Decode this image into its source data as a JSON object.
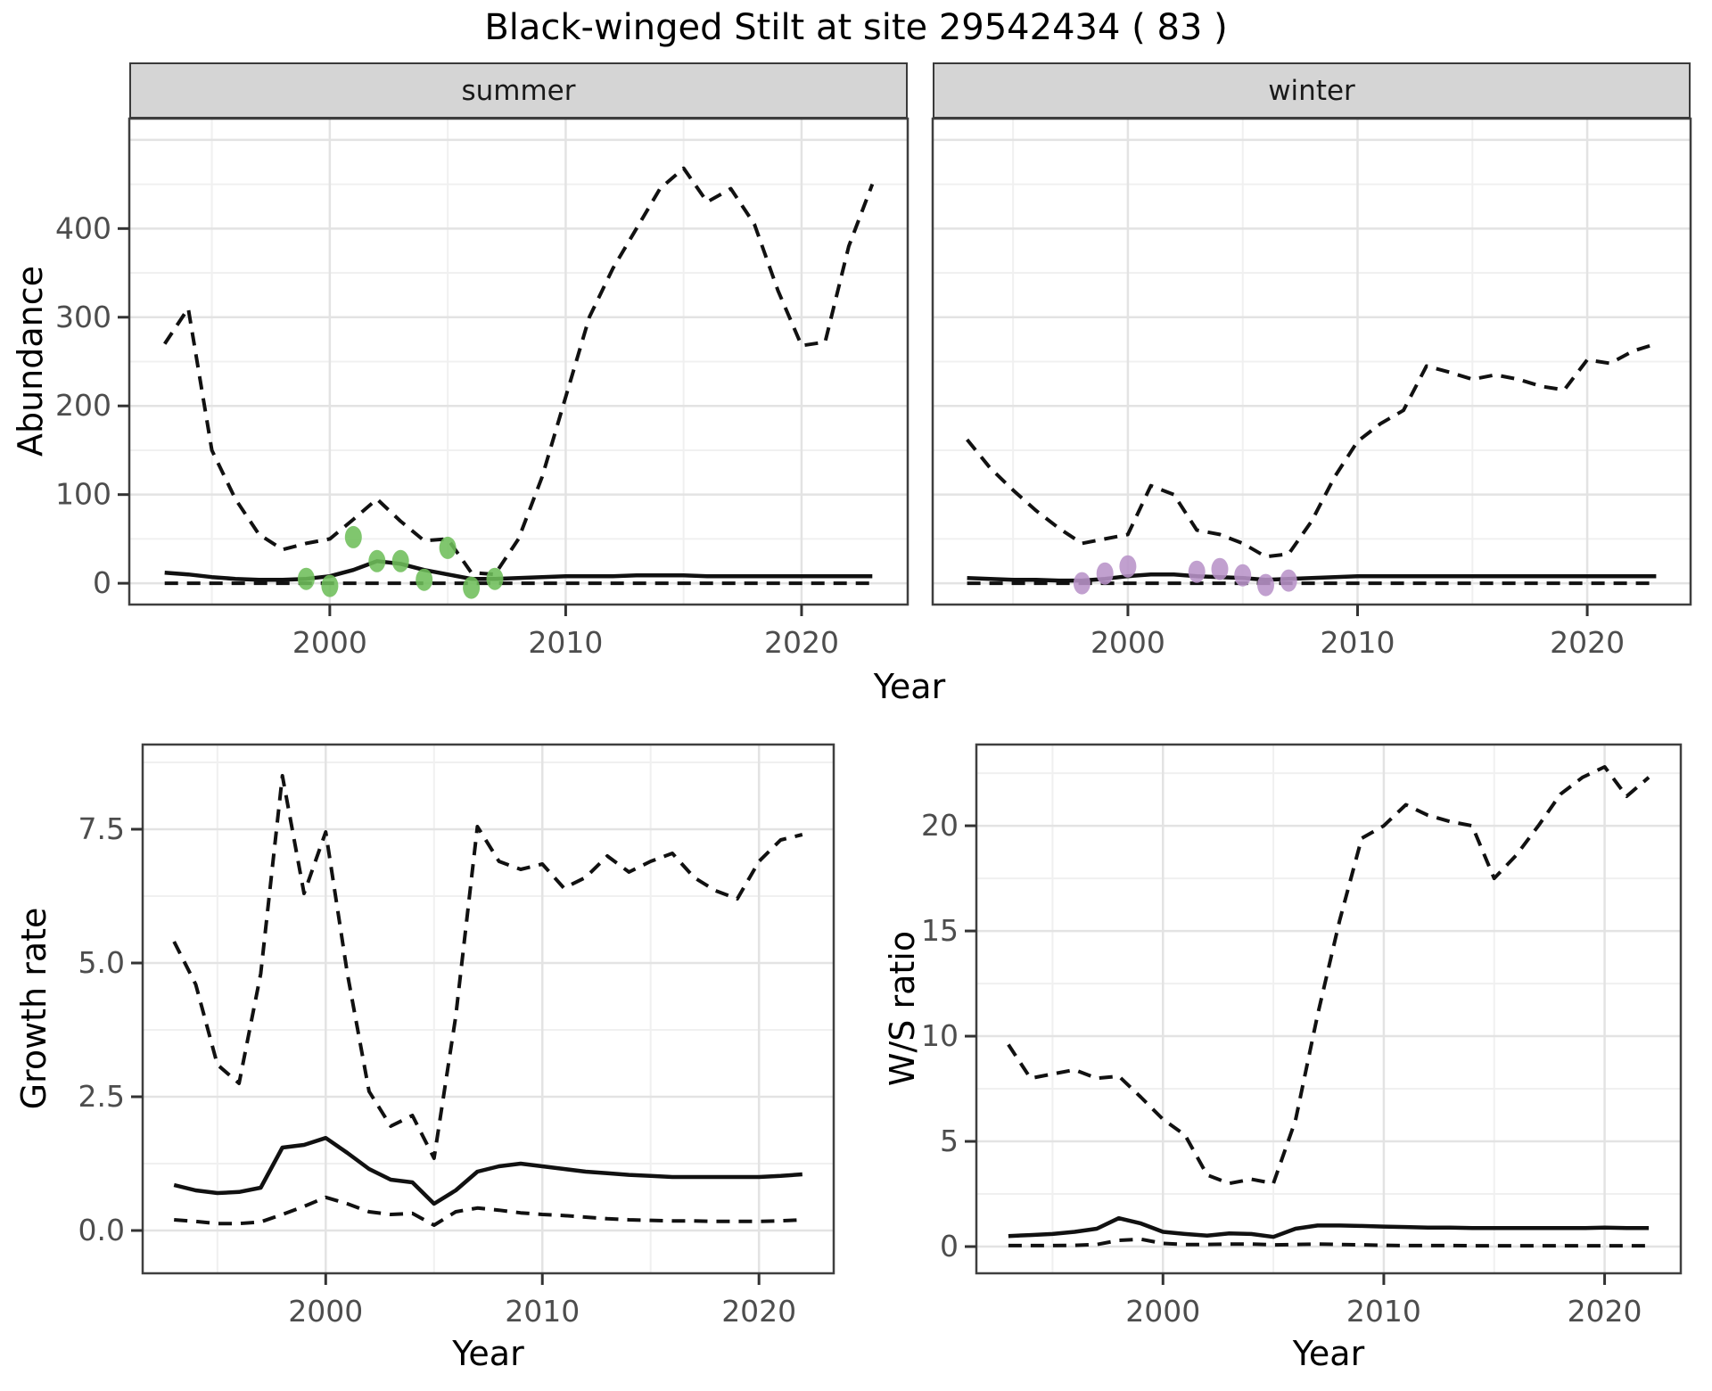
{
  "title": "Black-winged Stilt at site 29542434 ( 83 )",
  "axis_titles": {
    "abundance_y": "Abundance",
    "top_x": "Year",
    "growth_y": "Growth rate",
    "growth_x": "Year",
    "ws_y": "W/S ratio",
    "ws_x": "Year"
  },
  "colors": {
    "line": "#111111",
    "summer_points": "#6ebe5a",
    "winter_points": "#b893c8",
    "grid_major": "#e3e3e3",
    "grid_minor": "#f0f0f0",
    "panel_border": "#3f3f3f",
    "tick": "#333333",
    "tick_label": "#4d4d4d",
    "strip_bg": "#d5d5d5"
  },
  "chart_data": [
    {
      "key": "summer",
      "type": "line",
      "facet_label": "summer",
      "xlabel": "Year",
      "ylabel": "Abundance",
      "x": [
        1993,
        1994,
        1995,
        1996,
        1997,
        1998,
        1999,
        2000,
        2001,
        2002,
        2003,
        2004,
        2005,
        2006,
        2007,
        2008,
        2009,
        2010,
        2011,
        2012,
        2013,
        2014,
        2015,
        2016,
        2017,
        2018,
        2019,
        2020,
        2021,
        2022,
        2023
      ],
      "series": [
        {
          "name": "upper_dashed_q97_5",
          "style": "dashed",
          "values": [
            270,
            310,
            150,
            95,
            55,
            38,
            45,
            50,
            72,
            95,
            70,
            48,
            50,
            12,
            10,
            50,
            120,
            210,
            300,
            355,
            400,
            445,
            468,
            430,
            445,
            405,
            330,
            268,
            272,
            380,
            450
          ]
        },
        {
          "name": "median_solid",
          "style": "solid",
          "values": [
            12,
            10,
            7,
            5,
            4,
            4,
            5,
            8,
            15,
            25,
            22,
            15,
            10,
            5,
            5,
            6,
            7,
            8,
            8,
            8,
            9,
            9,
            9,
            8,
            8,
            8,
            8,
            8,
            8,
            8,
            8
          ]
        },
        {
          "name": "lower_dashed_q2_5",
          "style": "dashed",
          "values": [
            0,
            0,
            0,
            0,
            0,
            0,
            0,
            0,
            0,
            0,
            0,
            0,
            0,
            0,
            0,
            0,
            0,
            0,
            0,
            0,
            0,
            0,
            0,
            0,
            0,
            0,
            0,
            0,
            0,
            0,
            0
          ]
        }
      ],
      "points": {
        "name": "observed_counts",
        "color": "#6ebe5a",
        "x": [
          1999,
          2000,
          2001,
          2002,
          2003,
          2004,
          2005,
          2006,
          2007
        ],
        "y": [
          5,
          -3,
          52,
          25,
          25,
          4,
          40,
          -5,
          5
        ]
      },
      "xlim": [
        1991.5,
        2024.5
      ],
      "ylim": [
        -24,
        524
      ],
      "xticks": [
        2000,
        2010,
        2020
      ],
      "xtick_labels": [
        "2000",
        "2010",
        "2020"
      ],
      "minor_x": [
        1995,
        2005,
        2015
      ],
      "y_grid_major": [
        0,
        100,
        200,
        300,
        400,
        500
      ],
      "yticks_labeled": [
        0,
        100,
        200,
        300,
        400
      ],
      "ytick_labels": [
        "0",
        "100",
        "200",
        "300",
        "400"
      ],
      "minor_y": [
        50,
        150,
        250,
        350,
        450
      ],
      "show_y_axis": true
    },
    {
      "key": "winter",
      "type": "line",
      "facet_label": "winter",
      "xlabel": "Year",
      "ylabel": "Abundance",
      "x": [
        1993,
        1994,
        1995,
        1996,
        1997,
        1998,
        1999,
        2000,
        2001,
        2002,
        2003,
        2004,
        2005,
        2006,
        2007,
        2008,
        2009,
        2010,
        2011,
        2012,
        2013,
        2014,
        2015,
        2016,
        2017,
        2018,
        2019,
        2020,
        2021,
        2022,
        2023
      ],
      "series": [
        {
          "name": "upper_dashed_q97_5",
          "style": "dashed",
          "values": [
            162,
            130,
            105,
            82,
            62,
            45,
            50,
            55,
            110,
            100,
            60,
            55,
            45,
            30,
            33,
            70,
            120,
            160,
            180,
            195,
            245,
            238,
            230,
            235,
            230,
            222,
            218,
            252,
            248,
            262,
            270
          ]
        },
        {
          "name": "median_solid",
          "style": "solid",
          "values": [
            6,
            5,
            4,
            4,
            3,
            3,
            5,
            8,
            10,
            10,
            8,
            7,
            6,
            4,
            5,
            6,
            7,
            8,
            8,
            8,
            8,
            8,
            8,
            8,
            8,
            8,
            8,
            8,
            8,
            8,
            8
          ]
        },
        {
          "name": "lower_dashed_q2_5",
          "style": "dashed",
          "values": [
            0,
            0,
            0,
            0,
            0,
            0,
            0,
            0,
            0,
            0,
            0,
            0,
            0,
            0,
            0,
            0,
            0,
            0,
            0,
            0,
            0,
            0,
            0,
            0,
            0,
            0,
            0,
            0,
            0,
            0,
            0
          ]
        }
      ],
      "points": {
        "name": "observed_counts",
        "color": "#b893c8",
        "x": [
          1998,
          1999,
          2000,
          2003,
          2004,
          2005,
          2006,
          2007
        ],
        "y": [
          0,
          11,
          19,
          13,
          16,
          9,
          -2,
          3
        ]
      },
      "xlim": [
        1991.5,
        2024.5
      ],
      "ylim": [
        -24,
        524
      ],
      "xticks": [
        2000,
        2010,
        2020
      ],
      "xtick_labels": [
        "2000",
        "2010",
        "2020"
      ],
      "minor_x": [
        1995,
        2005,
        2015
      ],
      "y_grid_major": [
        0,
        100,
        200,
        300,
        400,
        500
      ],
      "yticks_labeled": [],
      "ytick_labels": [],
      "minor_y": [
        50,
        150,
        250,
        350,
        450
      ],
      "show_y_axis": false
    },
    {
      "key": "growth",
      "type": "line",
      "facet_label": "",
      "xlabel": "Year",
      "ylabel": "Growth rate",
      "x": [
        1993,
        1994,
        1995,
        1996,
        1997,
        1998,
        1999,
        2000,
        2001,
        2002,
        2003,
        2004,
        2005,
        2006,
        2007,
        2008,
        2009,
        2010,
        2011,
        2012,
        2013,
        2014,
        2015,
        2016,
        2017,
        2018,
        2019,
        2020,
        2021,
        2022
      ],
      "series": [
        {
          "name": "upper_dashed_q97_5",
          "style": "dashed",
          "values": [
            5.4,
            4.6,
            3.1,
            2.75,
            4.8,
            8.5,
            6.3,
            7.45,
            4.8,
            2.6,
            1.95,
            2.15,
            1.35,
            4.0,
            7.55,
            6.9,
            6.75,
            6.85,
            6.4,
            6.6,
            7.0,
            6.7,
            6.9,
            7.05,
            6.6,
            6.35,
            6.2,
            6.9,
            7.3,
            7.4
          ]
        },
        {
          "name": "median_solid",
          "style": "solid",
          "values": [
            0.85,
            0.75,
            0.7,
            0.72,
            0.8,
            1.55,
            1.6,
            1.73,
            1.45,
            1.15,
            0.95,
            0.9,
            0.5,
            0.75,
            1.1,
            1.2,
            1.25,
            1.2,
            1.15,
            1.1,
            1.07,
            1.04,
            1.02,
            1.0,
            1.0,
            1.0,
            1.0,
            1.0,
            1.02,
            1.05
          ]
        },
        {
          "name": "lower_dashed_q2_5",
          "style": "dashed",
          "values": [
            0.2,
            0.17,
            0.13,
            0.13,
            0.16,
            0.3,
            0.45,
            0.62,
            0.5,
            0.35,
            0.3,
            0.32,
            0.1,
            0.35,
            0.42,
            0.38,
            0.33,
            0.3,
            0.28,
            0.25,
            0.22,
            0.2,
            0.19,
            0.18,
            0.18,
            0.17,
            0.17,
            0.17,
            0.18,
            0.2
          ]
        }
      ],
      "points": null,
      "xlim": [
        1991.55,
        2023.45
      ],
      "ylim": [
        -0.8,
        9.083
      ],
      "xticks": [
        2000,
        2010,
        2020
      ],
      "xtick_labels": [
        "2000",
        "2010",
        "2020"
      ],
      "minor_x": [
        1995,
        2005,
        2015
      ],
      "y_grid_major": [
        0,
        2.5,
        5,
        7.5
      ],
      "yticks_labeled": [
        0,
        2.5,
        5,
        7.5
      ],
      "ytick_labels": [
        "0.0",
        "2.5",
        "5.0",
        "7.5"
      ],
      "minor_y": [
        1.25,
        3.75,
        6.25,
        8.75
      ],
      "show_y_axis": true
    },
    {
      "key": "ws",
      "type": "line",
      "facet_label": "",
      "xlabel": "Year",
      "ylabel": "W/S ratio",
      "x": [
        1993,
        1994,
        1995,
        1996,
        1997,
        1998,
        1999,
        2000,
        2001,
        2002,
        2003,
        2004,
        2005,
        2006,
        2007,
        2008,
        2009,
        2010,
        2011,
        2012,
        2013,
        2014,
        2015,
        2016,
        2017,
        2018,
        2019,
        2020,
        2021,
        2022
      ],
      "series": [
        {
          "name": "upper_dashed_q97_5",
          "style": "dashed",
          "values": [
            9.6,
            8.0,
            8.2,
            8.4,
            8.0,
            8.1,
            7.1,
            6.05,
            5.3,
            3.4,
            3.0,
            3.2,
            3.0,
            6.0,
            11.0,
            15.5,
            19.4,
            20.0,
            21.0,
            20.5,
            20.2,
            20.0,
            17.5,
            18.6,
            20.0,
            21.5,
            22.3,
            22.8,
            21.4,
            22.3
          ]
        },
        {
          "name": "median_solid",
          "style": "solid",
          "values": [
            0.5,
            0.55,
            0.6,
            0.7,
            0.85,
            1.35,
            1.1,
            0.7,
            0.6,
            0.52,
            0.63,
            0.6,
            0.46,
            0.85,
            1.0,
            1.0,
            0.98,
            0.95,
            0.93,
            0.9,
            0.9,
            0.88,
            0.88,
            0.88,
            0.88,
            0.88,
            0.88,
            0.9,
            0.88,
            0.88
          ]
        },
        {
          "name": "lower_dashed_q2_5",
          "style": "dashed",
          "values": [
            0.05,
            0.05,
            0.05,
            0.06,
            0.1,
            0.3,
            0.35,
            0.15,
            0.1,
            0.1,
            0.12,
            0.12,
            0.08,
            0.1,
            0.12,
            0.1,
            0.08,
            0.06,
            0.05,
            0.05,
            0.05,
            0.04,
            0.04,
            0.04,
            0.04,
            0.04,
            0.04,
            0.04,
            0.04,
            0.04
          ]
        }
      ],
      "points": null,
      "xlim": [
        1991.55,
        2023.45
      ],
      "ylim": [
        -1.27,
        23.86
      ],
      "xticks": [
        2000,
        2010,
        2020
      ],
      "xtick_labels": [
        "2000",
        "2010",
        "2020"
      ],
      "minor_x": [
        1995,
        2005,
        2015
      ],
      "y_grid_major": [
        0,
        5,
        10,
        15,
        20
      ],
      "yticks_labeled": [
        0,
        5,
        10,
        15,
        20
      ],
      "ytick_labels": [
        "0",
        "5",
        "10",
        "15",
        "20"
      ],
      "minor_y": [
        2.5,
        7.5,
        12.5,
        17.5,
        22.5
      ],
      "show_y_axis": true
    }
  ]
}
